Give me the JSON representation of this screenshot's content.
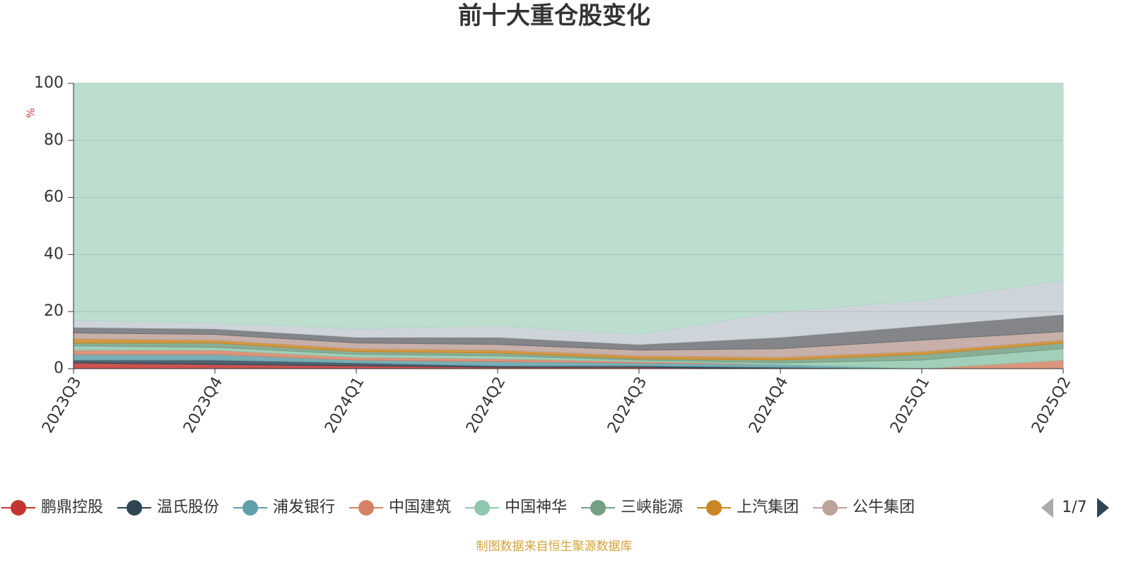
{
  "chart_data": {
    "type": "stacked-area",
    "title": "前十大重仓股变化",
    "y_label": "%",
    "categories": [
      "2023Q3",
      "2023Q4",
      "2024Q1",
      "2024Q2",
      "2024Q3",
      "2024Q4",
      "2025Q1",
      "2025Q2"
    ],
    "series": [
      {
        "name": "鹏鼎控股",
        "color": "#c23531",
        "values": [
          2,
          1.5,
          1,
          0.5,
          0.5,
          0,
          0,
          0
        ]
      },
      {
        "name": "温氏股份",
        "color": "#2f4554",
        "values": [
          1,
          1.5,
          1,
          0.5,
          0.5,
          0.5,
          0,
          0
        ]
      },
      {
        "name": "浦发银行",
        "color": "#61a0a8",
        "values": [
          2,
          2,
          1,
          1.5,
          1,
          1,
          0,
          0
        ]
      },
      {
        "name": "中国建筑",
        "color": "#d48265",
        "values": [
          1.5,
          1.5,
          1,
          1,
          0.5,
          0,
          0,
          3
        ]
      },
      {
        "name": "中国神华",
        "color": "#91c7ae",
        "values": [
          1.5,
          1,
          1,
          1,
          0.5,
          0.5,
          3,
          4
        ]
      },
      {
        "name": "三峡能源",
        "color": "#749f83",
        "values": [
          1,
          1.5,
          1,
          1,
          0.5,
          1,
          2,
          2
        ]
      },
      {
        "name": "上汽集团",
        "color": "#ca8622",
        "values": [
          1.5,
          1,
          1,
          1,
          1,
          1,
          1,
          1
        ]
      },
      {
        "name": "公牛集团",
        "color": "#bda29a",
        "values": [
          2,
          2,
          2,
          2,
          2,
          3,
          4,
          3
        ]
      },
      {
        "color": "#6e7074",
        "values": [
          2,
          2,
          2,
          2.5,
          2,
          4,
          5,
          6
        ]
      },
      {
        "color": "#c4ccd3",
        "values": [
          2.5,
          2,
          3,
          4,
          3.5,
          9,
          9,
          12
        ]
      },
      {
        "color": "#b2d8c6",
        "values": [
          83,
          84,
          86,
          85,
          88,
          80,
          76,
          69
        ]
      }
    ],
    "ylim": [
      0,
      100
    ],
    "yticks": [
      0,
      20,
      40,
      60,
      80,
      100
    ],
    "grid": true,
    "legend_page": "1/7",
    "source": "制图数据来自恒生聚源数据库"
  }
}
